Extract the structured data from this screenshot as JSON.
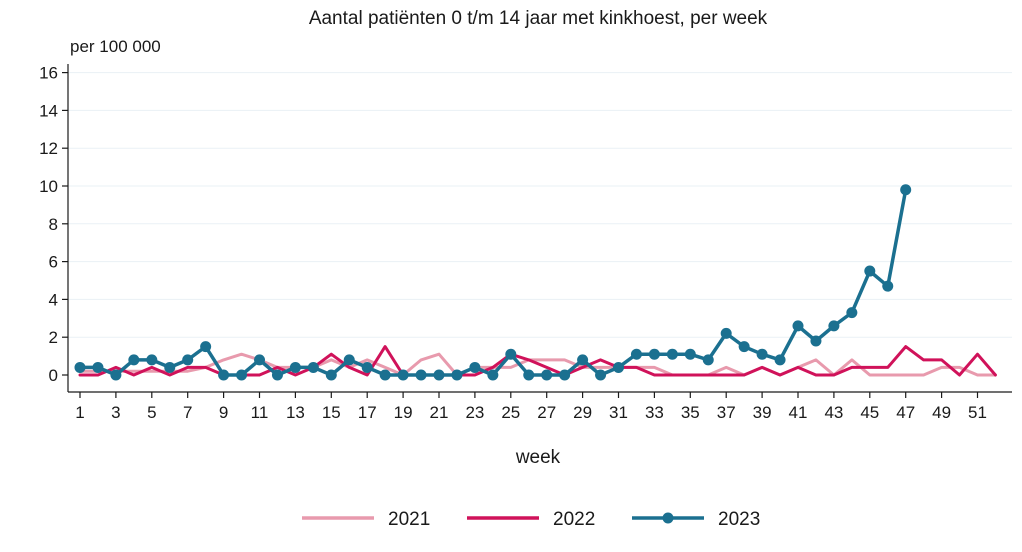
{
  "chart_data": {
    "type": "line",
    "title": "Aantal patiënten 0 t/m 14 jaar met kinkhoest, per week",
    "ylabel": "per 100 000",
    "xlabel": "week",
    "ylim": [
      0,
      16
    ],
    "yticks": [
      0,
      2,
      4,
      6,
      8,
      10,
      12,
      14,
      16
    ],
    "xlim": [
      1,
      52
    ],
    "xticks": [
      1,
      3,
      5,
      7,
      9,
      11,
      13,
      15,
      17,
      19,
      21,
      23,
      25,
      27,
      29,
      31,
      33,
      35,
      37,
      39,
      41,
      43,
      45,
      47,
      49,
      51
    ],
    "grid": "horizontal",
    "legend_position": "bottom",
    "series": [
      {
        "name": "2021",
        "color": "#e89aad",
        "markers": false,
        "x": [
          1,
          2,
          3,
          4,
          5,
          6,
          7,
          8,
          9,
          10,
          11,
          12,
          13,
          14,
          15,
          16,
          17,
          18,
          19,
          20,
          21,
          22,
          23,
          24,
          25,
          26,
          27,
          28,
          29,
          30,
          31,
          32,
          33,
          34,
          35,
          36,
          37,
          38,
          39,
          40,
          41,
          42,
          43,
          44,
          45,
          46,
          47,
          48,
          49,
          50,
          51,
          52
        ],
        "values": [
          0.2,
          0.2,
          0.2,
          0.2,
          0.2,
          0.2,
          0.2,
          0.4,
          0.8,
          1.1,
          0.8,
          0.4,
          0.4,
          0.4,
          0.8,
          0.4,
          0.8,
          0.4,
          0.0,
          0.8,
          1.1,
          0.0,
          0.4,
          0.4,
          0.4,
          0.8,
          0.8,
          0.8,
          0.4,
          0.4,
          0.4,
          0.4,
          0.4,
          0.0,
          0.0,
          0.0,
          0.4,
          0.0,
          0.4,
          0.0,
          0.4,
          0.8,
          0.0,
          0.8,
          0.0,
          0.0,
          0.0,
          0.0,
          0.4,
          0.4,
          0.0,
          0.0
        ]
      },
      {
        "name": "2022",
        "color": "#d0125a",
        "markers": false,
        "x": [
          1,
          2,
          3,
          4,
          5,
          6,
          7,
          8,
          9,
          10,
          11,
          12,
          13,
          14,
          15,
          16,
          17,
          18,
          19,
          20,
          21,
          22,
          23,
          24,
          25,
          26,
          27,
          28,
          29,
          30,
          31,
          32,
          33,
          34,
          35,
          36,
          37,
          38,
          39,
          40,
          41,
          42,
          43,
          44,
          45,
          46,
          47,
          48,
          49,
          50,
          51,
          52
        ],
        "values": [
          0.0,
          0.0,
          0.4,
          0.0,
          0.4,
          0.0,
          0.4,
          0.4,
          0.0,
          0.0,
          0.0,
          0.4,
          0.0,
          0.4,
          1.1,
          0.4,
          0.0,
          1.5,
          0.0,
          0.0,
          0.0,
          0.0,
          0.0,
          0.4,
          1.1,
          0.8,
          0.4,
          0.0,
          0.4,
          0.8,
          0.4,
          0.4,
          0.0,
          0.0,
          0.0,
          0.0,
          0.0,
          0.0,
          0.4,
          0.0,
          0.4,
          0.0,
          0.0,
          0.4,
          0.4,
          0.4,
          1.5,
          0.8,
          0.8,
          0.0,
          1.1,
          0.0
        ]
      },
      {
        "name": "2023",
        "color": "#1b7090",
        "markers": true,
        "x": [
          1,
          2,
          3,
          4,
          5,
          6,
          7,
          8,
          9,
          10,
          11,
          12,
          13,
          14,
          15,
          16,
          17,
          18,
          19,
          20,
          21,
          22,
          23,
          24,
          25,
          26,
          27,
          28,
          29,
          30,
          31,
          32,
          33,
          34,
          35,
          36,
          37,
          38,
          39,
          40,
          41,
          42,
          43,
          44,
          45,
          46,
          47
        ],
        "values": [
          0.4,
          0.4,
          0.0,
          0.8,
          0.8,
          0.4,
          0.8,
          1.5,
          0.0,
          0.0,
          0.8,
          0.0,
          0.4,
          0.4,
          0.0,
          0.8,
          0.4,
          0.0,
          0.0,
          0.0,
          0.0,
          0.0,
          0.4,
          0.0,
          1.1,
          0.0,
          0.0,
          0.0,
          0.8,
          0.0,
          0.4,
          1.1,
          1.1,
          1.1,
          1.1,
          0.8,
          2.2,
          1.5,
          1.1,
          0.8,
          2.6,
          1.8,
          2.6,
          3.3,
          5.5,
          4.7,
          9.8
        ]
      }
    ]
  }
}
